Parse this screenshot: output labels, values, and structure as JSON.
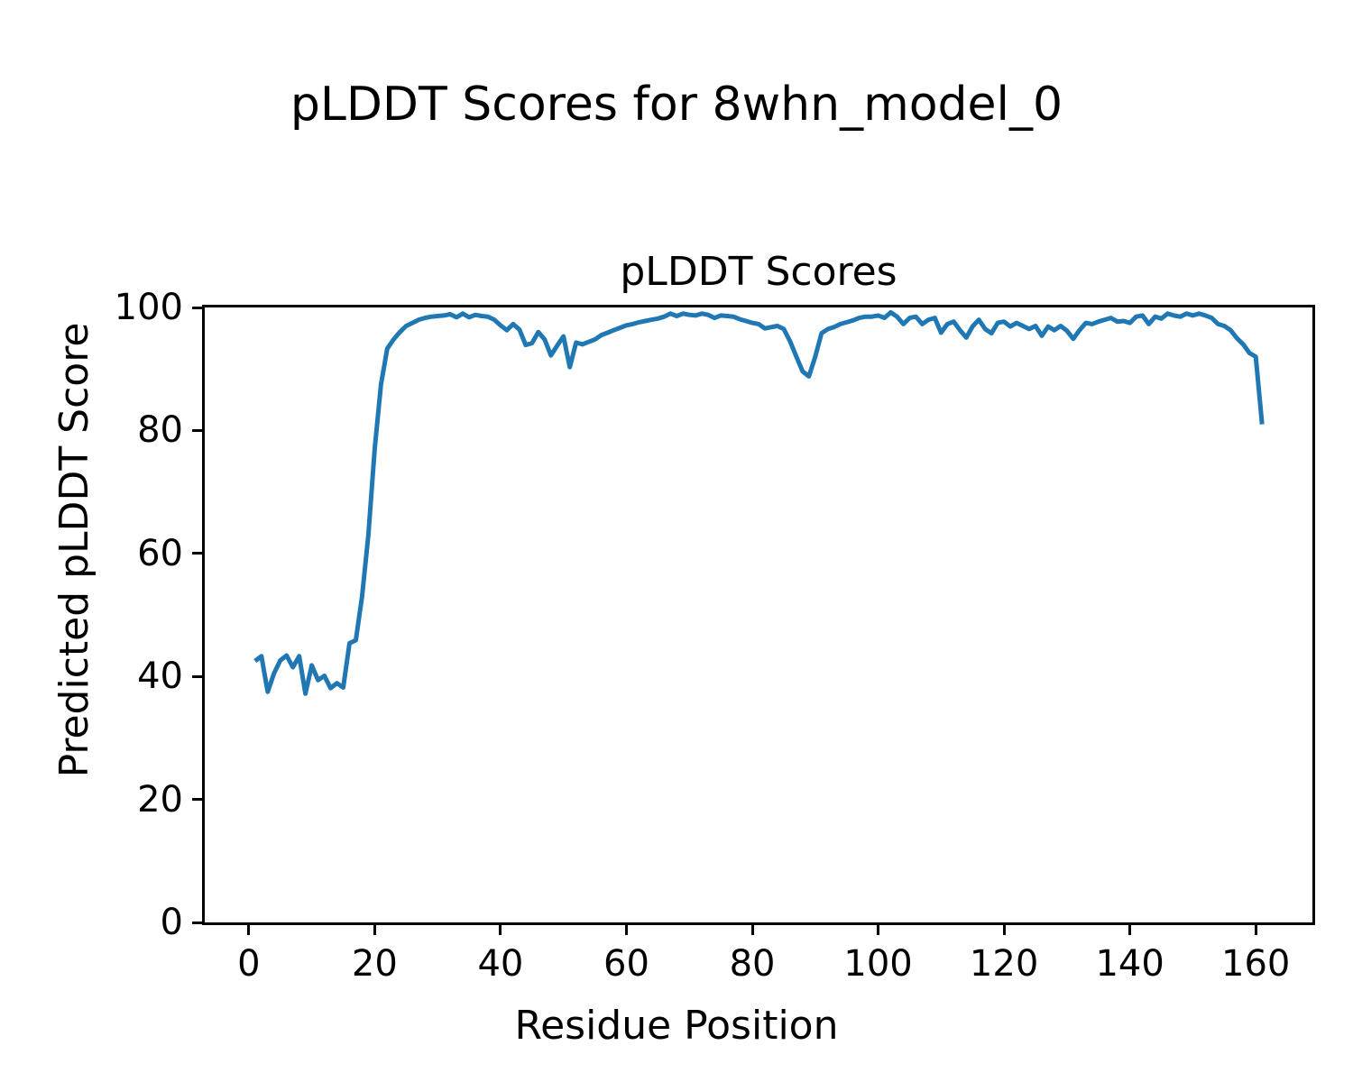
{
  "figure": {
    "suptitle": "pLDDT Scores for 8whn_model_0",
    "background_color": "#ffffff",
    "text_color": "#000000"
  },
  "chart_data": {
    "type": "line",
    "title": "pLDDT Scores",
    "xlabel": "Residue Position",
    "ylabel": "Predicted pLDDT Score",
    "xlim": [
      -7,
      169
    ],
    "ylim": [
      0,
      100
    ],
    "xticks": [
      0,
      20,
      40,
      60,
      80,
      100,
      120,
      140,
      160
    ],
    "yticks": [
      0,
      20,
      40,
      60,
      80,
      100
    ],
    "grid": false,
    "legend": null,
    "line_color": "#1f77b4",
    "line_width": 5,
    "series": [
      {
        "name": "pLDDT",
        "x": [
          1,
          2,
          3,
          4,
          5,
          6,
          7,
          8,
          9,
          10,
          11,
          12,
          13,
          14,
          15,
          16,
          17,
          18,
          19,
          20,
          21,
          22,
          23,
          24,
          25,
          26,
          27,
          28,
          29,
          30,
          31,
          32,
          33,
          34,
          35,
          36,
          37,
          38,
          39,
          40,
          41,
          42,
          43,
          44,
          45,
          46,
          47,
          48,
          49,
          50,
          51,
          52,
          53,
          54,
          55,
          56,
          57,
          58,
          59,
          60,
          61,
          62,
          63,
          64,
          65,
          66,
          67,
          68,
          69,
          70,
          71,
          72,
          73,
          74,
          75,
          76,
          77,
          78,
          79,
          80,
          81,
          82,
          83,
          84,
          85,
          86,
          87,
          88,
          89,
          90,
          91,
          92,
          93,
          94,
          95,
          96,
          97,
          98,
          99,
          100,
          101,
          102,
          103,
          104,
          105,
          106,
          107,
          108,
          109,
          110,
          111,
          112,
          113,
          114,
          115,
          116,
          117,
          118,
          119,
          120,
          121,
          122,
          123,
          124,
          125,
          126,
          127,
          128,
          129,
          130,
          131,
          132,
          133,
          134,
          135,
          136,
          137,
          138,
          139,
          140,
          141,
          142,
          143,
          144,
          145,
          146,
          147,
          148,
          149,
          150,
          151,
          152,
          153,
          154,
          155,
          156,
          157,
          158,
          159,
          160,
          161
        ],
        "y": [
          42.5,
          43.3,
          37.5,
          40.5,
          42.6,
          43.4,
          41.5,
          43.3,
          37.2,
          41.8,
          39.4,
          40.1,
          38.1,
          38.9,
          38.2,
          45.4,
          45.9,
          53.0,
          63.0,
          77.0,
          87.5,
          93.3,
          94.8,
          96.0,
          97.0,
          97.5,
          98.0,
          98.3,
          98.5,
          98.6,
          98.7,
          98.9,
          98.4,
          99.0,
          98.4,
          98.8,
          98.6,
          98.5,
          98.0,
          97.1,
          96.3,
          97.3,
          96.4,
          93.9,
          94.2,
          96.0,
          94.8,
          92.2,
          93.8,
          95.3,
          90.3,
          94.3,
          94.0,
          94.4,
          94.8,
          95.5,
          95.9,
          96.3,
          96.7,
          97.1,
          97.3,
          97.6,
          97.8,
          98.0,
          98.2,
          98.5,
          99.0,
          98.6,
          99.0,
          98.8,
          98.7,
          99.0,
          98.8,
          98.3,
          98.7,
          98.6,
          98.5,
          98.1,
          97.8,
          97.5,
          97.3,
          96.6,
          96.8,
          97.0,
          96.5,
          94.5,
          92.0,
          89.6,
          88.8,
          92.0,
          95.8,
          96.5,
          96.8,
          97.3,
          97.6,
          97.9,
          98.3,
          98.5,
          98.5,
          98.7,
          98.3,
          99.2,
          98.5,
          97.3,
          98.3,
          98.5,
          97.3,
          98.0,
          98.3,
          95.9,
          97.3,
          97.7,
          96.3,
          95.1,
          96.9,
          98.0,
          96.5,
          95.8,
          97.5,
          97.7,
          96.9,
          97.5,
          97.0,
          96.5,
          97.0,
          95.4,
          96.9,
          96.3,
          97.0,
          96.2,
          94.9,
          96.3,
          97.5,
          97.3,
          97.7,
          98.0,
          98.3,
          97.7,
          97.8,
          97.5,
          98.5,
          98.7,
          97.3,
          98.5,
          98.2,
          99.0,
          98.7,
          98.5,
          99.0,
          98.7,
          99.0,
          98.7,
          98.3,
          97.3,
          97.0,
          96.3,
          95.0,
          94.0,
          92.6,
          92.0,
          81.0
        ]
      }
    ]
  }
}
